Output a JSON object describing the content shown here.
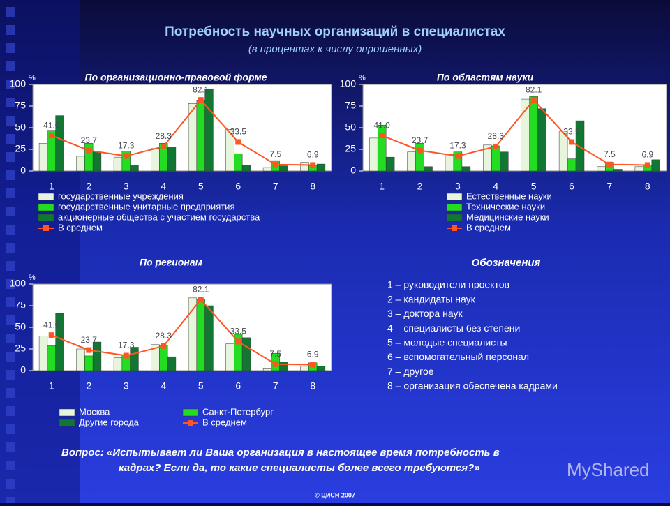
{
  "header": {
    "title": "Потребность научных организаций в специалистах",
    "subtitle": "(в процентах к числу опрошенных)"
  },
  "chart_data": [
    {
      "type": "bar",
      "title": "По организационно-правовой форме",
      "y_unit": "%",
      "categories": [
        "1",
        "2",
        "3",
        "4",
        "5",
        "6",
        "7",
        "8"
      ],
      "series": [
        {
          "name": "государственные учреждения",
          "color": "#e6f5dc",
          "values": [
            32,
            17,
            16,
            26,
            78,
            48,
            4,
            10
          ]
        },
        {
          "name": "государственные унитарные предприятия",
          "color": "#22dd22",
          "values": [
            47,
            32,
            23,
            32,
            82,
            20,
            12,
            6
          ]
        },
        {
          "name": "акционерные общества с участием государства",
          "color": "#117733",
          "values": [
            64,
            22,
            7,
            28,
            95,
            7,
            6,
            8
          ]
        },
        {
          "name": "В среднем",
          "type": "line",
          "color": "#ff5522",
          "values": [
            41.0,
            23.7,
            17.3,
            28.3,
            82.1,
            33.5,
            7.5,
            6.9
          ],
          "value_labels": [
            "41.0",
            "23.7",
            "17.3",
            "28.3",
            "82.1",
            "33.5",
            "7.5",
            "6.9"
          ]
        }
      ],
      "ylim": [
        0,
        100
      ],
      "yticks": [
        0,
        25,
        50,
        75,
        100
      ],
      "grid": false,
      "legend_columns": 1
    },
    {
      "type": "bar",
      "title": "По областям науки",
      "y_unit": "%",
      "categories": [
        "1",
        "2",
        "3",
        "4",
        "5",
        "6",
        "7",
        "8"
      ],
      "series": [
        {
          "name": "Естественные науки",
          "color": "#e6f5dc",
          "values": [
            38,
            22,
            19,
            30,
            83,
            46,
            5,
            5
          ]
        },
        {
          "name": "Технические науки",
          "color": "#22dd22",
          "values": [
            53,
            32,
            22,
            29,
            86,
            14,
            10,
            7
          ]
        },
        {
          "name": "Медицинские науки",
          "color": "#117733",
          "values": [
            16,
            5,
            5,
            22,
            72,
            58,
            2,
            13
          ]
        },
        {
          "name": "В среднем",
          "type": "line",
          "color": "#ff5522",
          "values": [
            41.0,
            23.7,
            17.3,
            28.3,
            82.1,
            33.5,
            7.5,
            6.9
          ],
          "value_labels": [
            "41.0",
            "23.7",
            "17.3",
            "28.3",
            "82.1",
            "33.5",
            "7.5",
            "6.9"
          ]
        }
      ],
      "ylim": [
        0,
        100
      ],
      "yticks": [
        0,
        25,
        50,
        75,
        100
      ],
      "grid": false,
      "legend_columns": 1
    },
    {
      "type": "bar",
      "title": "По регионам",
      "y_unit": "%",
      "categories": [
        "1",
        "2",
        "3",
        "4",
        "5",
        "6",
        "7",
        "8"
      ],
      "series": [
        {
          "name": "Москва",
          "color": "#e6f5dc",
          "values": [
            40,
            25,
            15,
            30,
            84,
            31,
            3,
            5
          ]
        },
        {
          "name": "Санкт-Петербург",
          "color": "#22dd22",
          "values": [
            29,
            17,
            18,
            29,
            82,
            42,
            20,
            9
          ]
        },
        {
          "name": "Другие города",
          "color": "#117733",
          "values": [
            66,
            33,
            27,
            16,
            75,
            38,
            10,
            5
          ]
        },
        {
          "name": "В среднем",
          "type": "line",
          "color": "#ff5522",
          "values": [
            41.0,
            23.7,
            17.3,
            28.3,
            82.1,
            33.5,
            7.5,
            6.9
          ],
          "value_labels": [
            "41.0",
            "23.7",
            "17.3",
            "28.3",
            "82.1",
            "33.5",
            "7.5",
            "6.9"
          ]
        }
      ],
      "ylim": [
        0,
        100
      ],
      "yticks": [
        0,
        25,
        50,
        75,
        100
      ],
      "grid": false,
      "legend_columns": 2
    }
  ],
  "notes": {
    "title": "Обозначения",
    "items": [
      "1 – руководители проектов",
      "2 – кандидаты наук",
      "3 – доктора наук",
      "4 – специалисты без степени",
      "5 – молодые специалисты",
      "6 – вспомогательный персонал",
      "7 – другое",
      "8 – организация обеспечена кадрами"
    ]
  },
  "question": [
    "Вопрос: «Испытывает ли Ваша организация в настоящее время потребность в",
    "кадрах? Если да, то какие специалисты более всего требуются?»"
  ],
  "footer": "© ЦИСН 2007",
  "watermark": "MyShared"
}
